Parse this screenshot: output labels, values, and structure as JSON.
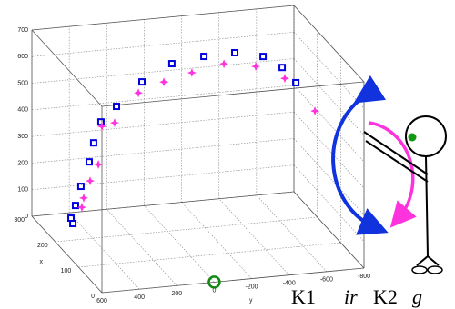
{
  "chart_data": {
    "type": "scatter3d",
    "xlabel": "x",
    "ylabel": "y",
    "xlim": [
      0,
      300
    ],
    "ylim": [
      600,
      -800
    ],
    "zlim": [
      0,
      700
    ],
    "xticks": [
      0,
      100,
      200,
      300
    ],
    "yticks": [
      600,
      400,
      200,
      0,
      -200,
      -400,
      -600,
      -800
    ],
    "zticks": [
      0,
      100,
      200,
      300,
      400,
      500,
      600,
      700
    ],
    "grid": true,
    "series": [
      {
        "color": "#0000dd",
        "marker": "square",
        "x": [
          150,
          150,
          150,
          150,
          150,
          150,
          150,
          150,
          150,
          150,
          150,
          150,
          150,
          150,
          150
        ],
        "y": [
          568,
          578,
          554,
          525,
          481,
          457,
          418,
          335,
          199,
          39,
          -132,
          -297,
          -448,
          -550,
          -623
        ],
        "z": [
          114,
          135,
          181,
          251,
          340,
          410,
          486,
          539,
          622,
          680,
          696,
          699,
          675,
          627,
          565
        ]
      },
      {
        "color": "#ff33dd",
        "marker": "star",
        "x": [
          150,
          150,
          150,
          150,
          150,
          150,
          150,
          150,
          150,
          150,
          150,
          150,
          150
        ],
        "y": [
          520,
          510,
          476,
          432,
          413,
          345,
          218,
          82,
          -68,
          -239,
          -409,
          -564,
          -725
        ],
        "z": [
          172,
          206,
          268,
          327,
          469,
          478,
          582,
          614,
          639,
          661,
          640,
          585,
          452
        ]
      },
      {
        "color": "#118811",
        "marker": "circle",
        "x": [
          0
        ],
        "y": [
          0
        ],
        "z": [
          0
        ]
      }
    ],
    "annotations": [
      "K1",
      "ir",
      "K2",
      "g"
    ]
  }
}
